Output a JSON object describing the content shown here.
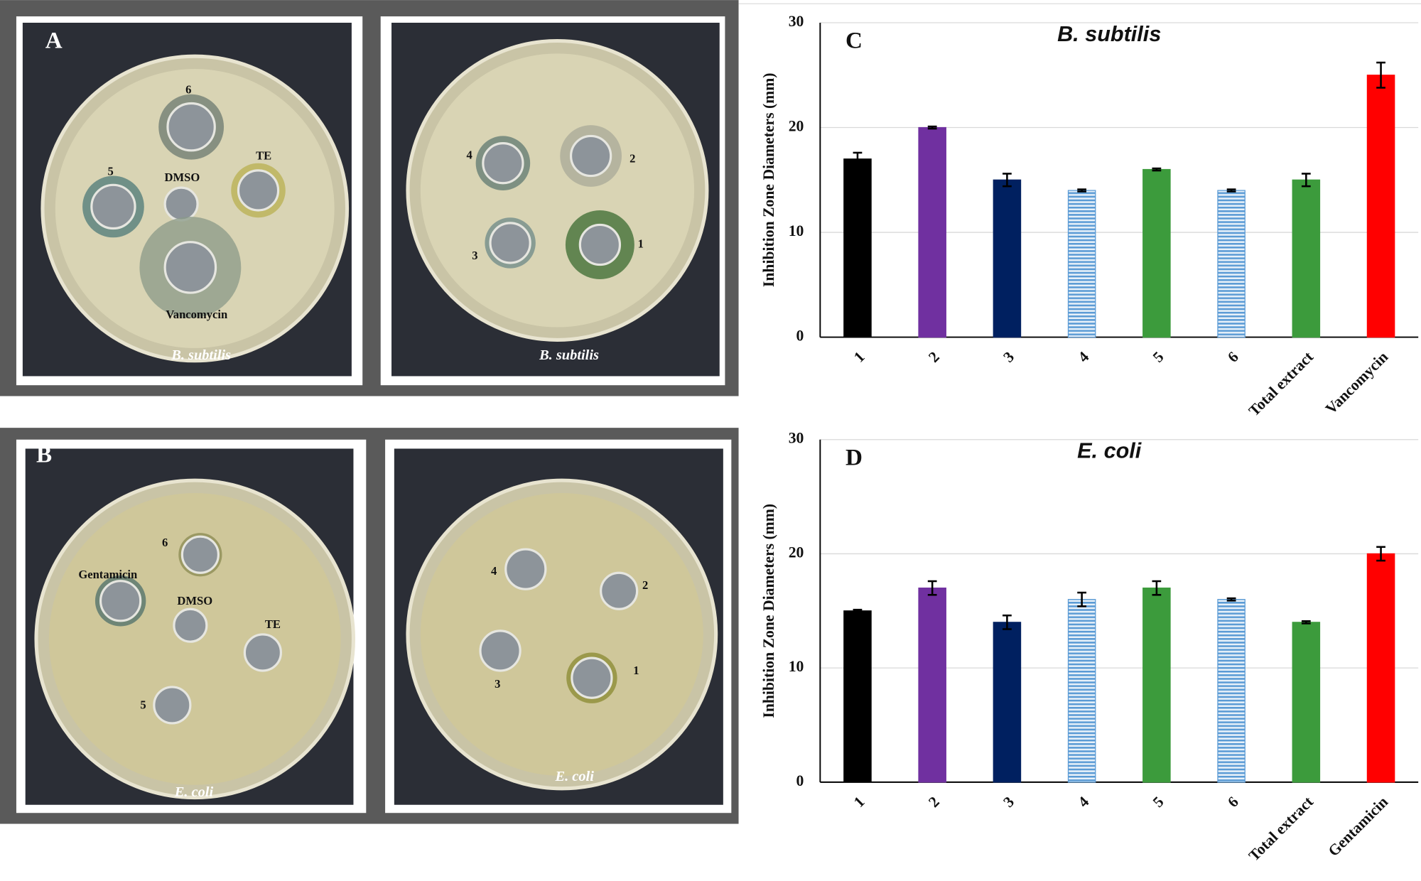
{
  "photos": [
    {
      "panel": "A",
      "plates": [
        {
          "caption": "B. subtilis",
          "labels": [
            "6",
            "TE",
            "5",
            "DMSO",
            "Vancomycin"
          ]
        },
        {
          "caption": "B. subtilis",
          "labels": [
            "4",
            "2",
            "3",
            "1"
          ]
        }
      ]
    },
    {
      "panel": "B",
      "plates": [
        {
          "caption": "E. coli",
          "labels": [
            "Gentamicin",
            "6",
            "DMSO",
            "TE",
            "5"
          ]
        },
        {
          "caption": "E. coli",
          "labels": [
            "4",
            "2",
            "3",
            "1"
          ]
        }
      ]
    }
  ],
  "chart_data": [
    {
      "type": "bar",
      "panel": "C",
      "title": "B. subtilis",
      "y_label": "Inhibition Zone Diameters (mm)",
      "categories": [
        "1",
        "2",
        "3",
        "4",
        "5",
        "6",
        "Total extract",
        "Vancomycin"
      ],
      "values": [
        17,
        20,
        15,
        14,
        16,
        14,
        15,
        25
      ],
      "errors": [
        0.6,
        0.1,
        0.6,
        0.1,
        0.1,
        0.1,
        0.6,
        1.2
      ],
      "colors": [
        "#000000",
        "#7030a0",
        "#002060",
        "#5b9bd5",
        "#3c9b3c",
        "#5b9bd5",
        "#3c9b3c",
        "#ff0000"
      ],
      "patterns": [
        "solid",
        "solid",
        "solid",
        "horizontal-lines",
        "solid",
        "horizontal-lines",
        "solid",
        "solid"
      ],
      "ylim": [
        0,
        30
      ],
      "yticks": [
        0,
        10,
        20,
        30
      ],
      "grid": true
    },
    {
      "type": "bar",
      "panel": "D",
      "title": "E. coli",
      "y_label": "Inhibition Zone Diameters (mm)",
      "categories": [
        "1",
        "2",
        "3",
        "4",
        "5",
        "6",
        "Total extract",
        "Gentamicin"
      ],
      "values": [
        15,
        17,
        14,
        16,
        17,
        16,
        14,
        20
      ],
      "errors": [
        0.1,
        0.6,
        0.6,
        0.6,
        0.6,
        0.1,
        0.1,
        0.6
      ],
      "colors": [
        "#000000",
        "#7030a0",
        "#002060",
        "#5b9bd5",
        "#3c9b3c",
        "#5b9bd5",
        "#3c9b3c",
        "#ff0000"
      ],
      "patterns": [
        "solid",
        "solid",
        "solid",
        "horizontal-lines",
        "solid",
        "horizontal-lines",
        "solid",
        "solid"
      ],
      "ylim": [
        0,
        30
      ],
      "yticks": [
        0,
        10,
        20,
        30
      ],
      "grid": true
    }
  ]
}
